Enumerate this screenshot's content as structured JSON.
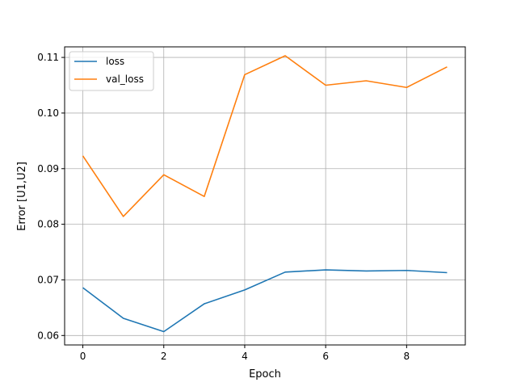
{
  "chart_data": {
    "type": "line",
    "title": "",
    "xlabel": "Epoch",
    "ylabel": "Error  [U1,U2]",
    "xlim": [
      -0.45,
      9.45
    ],
    "ylim": [
      0.0583,
      0.1119
    ],
    "xticks": [
      0,
      2,
      4,
      6,
      8
    ],
    "xtick_labels": [
      "0",
      "2",
      "4",
      "6",
      "8"
    ],
    "yticks": [
      0.06,
      0.07,
      0.08,
      0.09,
      0.1,
      0.11
    ],
    "ytick_labels": [
      "0.06",
      "0.07",
      "0.08",
      "0.09",
      "0.10",
      "0.11"
    ],
    "grid": true,
    "legend_position": "top-left",
    "x": [
      0,
      1,
      2,
      3,
      4,
      5,
      6,
      7,
      8,
      9
    ],
    "series": [
      {
        "name": "loss",
        "color": "#1f77b4",
        "values": [
          0.0686,
          0.0631,
          0.0607,
          0.0657,
          0.0682,
          0.0714,
          0.0718,
          0.0716,
          0.0717,
          0.0713
        ]
      },
      {
        "name": "val_loss",
        "color": "#ff7f0e",
        "values": [
          0.0923,
          0.0814,
          0.0889,
          0.085,
          0.1069,
          0.1103,
          0.105,
          0.1058,
          0.1046,
          0.1083
        ]
      }
    ]
  }
}
